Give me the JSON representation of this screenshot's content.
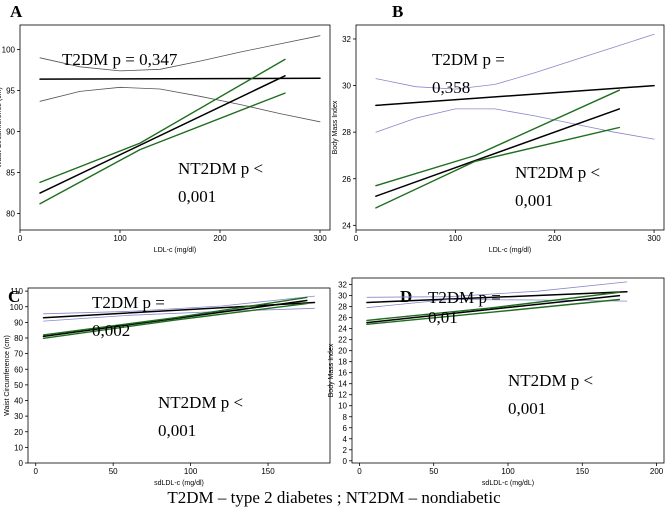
{
  "caption": "T2DM – type 2 diabetes  ; NT2DM – nondiabetic",
  "chart_data": [
    {
      "type": "line",
      "panel": "A",
      "xlabel": "LDL-c (mg/dl)",
      "ylabel": "Waist Circumference (cm)",
      "xlim": [
        0,
        310
      ],
      "ylim": [
        78,
        103
      ],
      "xticks": [
        0,
        100,
        200,
        300
      ],
      "yticks": [
        80,
        85,
        90,
        95,
        100
      ],
      "annotations": [
        {
          "id": "t2dm",
          "lines": [
            "T2DM p = 0,347"
          ]
        },
        {
          "id": "nt2dm",
          "lines": [
            "NT2DM p <",
            "0,001"
          ]
        }
      ],
      "series": [
        {
          "name": "T2DM fit",
          "role": "fit",
          "color": "#000000",
          "x": [
            20,
            300
          ],
          "y": [
            96.4,
            96.5
          ]
        },
        {
          "name": "T2DM CI upper",
          "role": "ci",
          "color": "#555555",
          "x": [
            20,
            60,
            100,
            140,
            180,
            220,
            260,
            300
          ],
          "y": [
            99.0,
            97.9,
            97.4,
            97.6,
            98.6,
            99.7,
            100.7,
            101.7
          ]
        },
        {
          "name": "T2DM CI lower",
          "role": "ci",
          "color": "#555555",
          "x": [
            20,
            60,
            100,
            140,
            180,
            220,
            260,
            300
          ],
          "y": [
            93.7,
            94.9,
            95.4,
            95.2,
            94.3,
            93.3,
            92.2,
            91.2
          ]
        },
        {
          "name": "NT2DM fit",
          "role": "fit",
          "color": "#000000",
          "x": [
            20,
            265
          ],
          "y": [
            82.5,
            96.8
          ]
        },
        {
          "name": "NT2DM CI upper",
          "role": "ci-green",
          "color": "#1e6e1e",
          "x": [
            20,
            120,
            265
          ],
          "y": [
            83.8,
            88.6,
            98.8
          ]
        },
        {
          "name": "NT2DM CI lower",
          "role": "ci-green",
          "color": "#1e6e1e",
          "x": [
            20,
            120,
            265
          ],
          "y": [
            81.2,
            87.8,
            94.7
          ]
        }
      ]
    },
    {
      "type": "line",
      "panel": "B",
      "xlabel": "LDL-c (mg/dl)",
      "ylabel": "Body Mass Index",
      "xlim": [
        0,
        310
      ],
      "ylim": [
        23.8,
        32.6
      ],
      "xticks": [
        0,
        100,
        200,
        300
      ],
      "yticks": [
        24,
        26,
        28,
        30,
        32
      ],
      "annotations": [
        {
          "id": "t2dm",
          "lines": [
            "T2DM p =",
            "0,358"
          ]
        },
        {
          "id": "nt2dm",
          "lines": [
            "NT2DM p <",
            "0,001"
          ]
        }
      ],
      "series": [
        {
          "name": "T2DM fit",
          "role": "fit",
          "color": "#000000",
          "x": [
            20,
            300
          ],
          "y": [
            29.15,
            30.0
          ]
        },
        {
          "name": "T2DM CI upper",
          "role": "ci",
          "color": "#8888cc",
          "x": [
            20,
            60,
            100,
            140,
            180,
            220,
            260,
            300
          ],
          "y": [
            30.3,
            29.95,
            29.85,
            30.05,
            30.55,
            31.1,
            31.65,
            32.2
          ]
        },
        {
          "name": "T2DM CI lower",
          "role": "ci",
          "color": "#8888cc",
          "x": [
            20,
            60,
            100,
            140,
            180,
            220,
            260,
            300
          ],
          "y": [
            28.0,
            28.6,
            29.0,
            29.0,
            28.7,
            28.35,
            28.0,
            27.7
          ]
        },
        {
          "name": "NT2DM fit",
          "role": "fit",
          "color": "#000000",
          "x": [
            20,
            265
          ],
          "y": [
            25.25,
            29.0
          ]
        },
        {
          "name": "NT2DM CI upper",
          "role": "ci-green",
          "color": "#1e6e1e",
          "x": [
            20,
            120,
            265
          ],
          "y": [
            25.7,
            27.0,
            29.8
          ]
        },
        {
          "name": "NT2DM CI lower",
          "role": "ci-green",
          "color": "#1e6e1e",
          "x": [
            20,
            120,
            265
          ],
          "y": [
            24.75,
            26.75,
            28.2
          ]
        }
      ]
    },
    {
      "type": "line",
      "panel": "C",
      "xlabel": "sdLDL-c (mg/dl)",
      "ylabel": "Waist Circumference (cm)",
      "xlim": [
        -5,
        190
      ],
      "ylim": [
        0,
        112
      ],
      "xticks": [
        0,
        50,
        100,
        150
      ],
      "yticks": [
        0,
        10,
        20,
        30,
        40,
        50,
        60,
        70,
        80,
        90,
        100,
        110
      ],
      "annotations": [
        {
          "id": "t2dm",
          "lines": [
            "T2DM p =",
            "0,002"
          ]
        },
        {
          "id": "nt2dm",
          "lines": [
            "NT2DM p <",
            "0,001"
          ]
        }
      ],
      "series": [
        {
          "name": "T2DM fit",
          "role": "fit",
          "color": "#000000",
          "x": [
            5,
            180
          ],
          "y": [
            93.0,
            102.7
          ]
        },
        {
          "name": "T2DM CI upper",
          "role": "ci",
          "color": "#8888cc",
          "x": [
            5,
            60,
            120,
            180
          ],
          "y": [
            95.5,
            97.0,
            100.5,
            106.8
          ]
        },
        {
          "name": "T2DM CI lower",
          "role": "ci",
          "color": "#8888cc",
          "x": [
            5,
            60,
            120,
            180
          ],
          "y": [
            90.8,
            94.5,
            97.0,
            99.0
          ]
        },
        {
          "name": "NT2DM fit",
          "role": "fit",
          "color": "#000000",
          "x": [
            5,
            175
          ],
          "y": [
            81.0,
            104.0
          ]
        },
        {
          "name": "NT2DM CI upper",
          "role": "ci-green",
          "color": "#1e6e1e",
          "x": [
            5,
            90,
            175
          ],
          "y": [
            82.0,
            93.0,
            106.0
          ]
        },
        {
          "name": "NT2DM CI lower",
          "role": "ci-green",
          "color": "#1e6e1e",
          "x": [
            5,
            90,
            175
          ],
          "y": [
            79.8,
            91.5,
            102.0
          ]
        }
      ]
    },
    {
      "type": "line",
      "panel": "D",
      "xlabel": "sdLDL-c (mg/dL)",
      "ylabel": "Body Mass Index",
      "xlim": [
        -5,
        205
      ],
      "ylim": [
        -0.4,
        33.2
      ],
      "xticks": [
        0,
        50,
        100,
        150,
        200
      ],
      "yticks": [
        0,
        2,
        4,
        6,
        8,
        10,
        12,
        14,
        16,
        18,
        20,
        22,
        24,
        26,
        28,
        30,
        32
      ],
      "annotations": [
        {
          "id": "t2dm",
          "lines": [
            "T2DM p =",
            "0,01"
          ]
        },
        {
          "id": "nt2dm",
          "lines": [
            "NT2DM p <",
            "0,001"
          ]
        }
      ],
      "series": [
        {
          "name": "T2DM fit",
          "role": "fit",
          "color": "#000000",
          "x": [
            5,
            180
          ],
          "y": [
            28.75,
            30.7
          ]
        },
        {
          "name": "T2DM CI upper",
          "role": "ci",
          "color": "#8888cc",
          "x": [
            5,
            60,
            120,
            180
          ],
          "y": [
            29.7,
            29.8,
            30.8,
            32.5
          ]
        },
        {
          "name": "T2DM CI lower",
          "role": "ci",
          "color": "#8888cc",
          "x": [
            5,
            60,
            120,
            180
          ],
          "y": [
            27.8,
            29.3,
            29.2,
            29.0
          ]
        },
        {
          "name": "NT2DM fit",
          "role": "fit",
          "color": "#000000",
          "x": [
            5,
            175
          ],
          "y": [
            25.1,
            30.0
          ]
        },
        {
          "name": "NT2DM CI upper",
          "role": "ci-green",
          "color": "#1e6e1e",
          "x": [
            5,
            90,
            175
          ],
          "y": [
            25.5,
            27.8,
            30.6
          ]
        },
        {
          "name": "NT2DM CI lower",
          "role": "ci-green",
          "color": "#1e6e1e",
          "x": [
            5,
            90,
            175
          ],
          "y": [
            24.8,
            27.0,
            29.3
          ]
        }
      ]
    }
  ]
}
